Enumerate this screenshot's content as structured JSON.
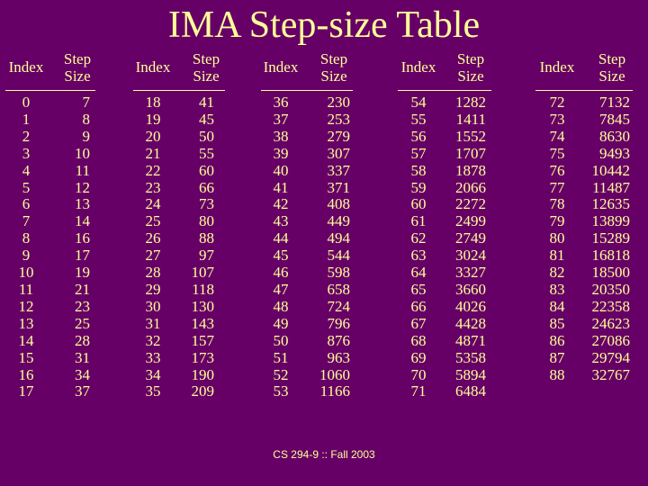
{
  "title": "IMA Step-size Table",
  "footer": "CS 294-9 :: Fall 2003",
  "headers": {
    "index": "Index",
    "step_line1": "Step",
    "step_line2": "Size"
  },
  "groups": [
    {
      "index": [
        "0",
        "1",
        "2",
        "3",
        "4",
        "5",
        "6",
        "7",
        "8",
        "9",
        "10",
        "11",
        "12",
        "13",
        "14",
        "15",
        "16",
        "17"
      ],
      "step": [
        "7",
        "8",
        "9",
        "10",
        "11",
        "12",
        "13",
        "14",
        "16",
        "17",
        "19",
        "21",
        "23",
        "25",
        "28",
        "31",
        "34",
        "37"
      ]
    },
    {
      "index": [
        "18",
        "19",
        "20",
        "21",
        "22",
        "23",
        "24",
        "25",
        "26",
        "27",
        "28",
        "29",
        "30",
        "31",
        "32",
        "33",
        "34",
        "35"
      ],
      "step": [
        "41",
        "45",
        "50",
        "55",
        "60",
        "66",
        "73",
        "80",
        "88",
        "97",
        "107",
        "118",
        "130",
        "143",
        "157",
        "173",
        "190",
        "209"
      ]
    },
    {
      "index": [
        "36",
        "37",
        "38",
        "39",
        "40",
        "41",
        "42",
        "43",
        "44",
        "45",
        "46",
        "47",
        "48",
        "49",
        "50",
        "51",
        "52",
        "53"
      ],
      "step": [
        "230",
        "253",
        "279",
        "307",
        "337",
        "371",
        "408",
        "449",
        "494",
        "544",
        "598",
        "658",
        "724",
        "796",
        "876",
        "963",
        "1060",
        "1166"
      ]
    },
    {
      "index": [
        "54",
        "55",
        "56",
        "57",
        "58",
        "59",
        "60",
        "61",
        "62",
        "63",
        "64",
        "65",
        "66",
        "67",
        "68",
        "69",
        "70",
        "71"
      ],
      "step": [
        "1282",
        "1411",
        "1552",
        "1707",
        "1878",
        "2066",
        "2272",
        "2499",
        "2749",
        "3024",
        "3327",
        "3660",
        "4026",
        "4428",
        "4871",
        "5358",
        "5894",
        "6484"
      ]
    },
    {
      "index": [
        "72",
        "73",
        "74",
        "75",
        "76",
        "77",
        "78",
        "79",
        "80",
        "81",
        "82",
        "83",
        "84",
        "85",
        "86",
        "87",
        "88"
      ],
      "step": [
        "7132",
        "7845",
        "8630",
        "9493",
        "10442",
        "11487",
        "12635",
        "13899",
        "15289",
        "16818",
        "18500",
        "20350",
        "22358",
        "24623",
        "27086",
        "29794",
        "32767"
      ]
    }
  ]
}
